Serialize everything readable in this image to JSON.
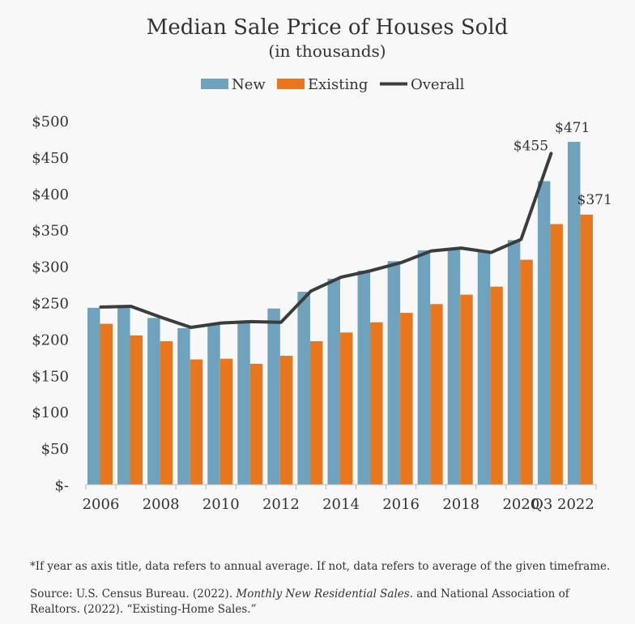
{
  "chart_data": {
    "type": "bar",
    "title": "Median Sale Price of Houses Sold",
    "subtitle": "(in thousands)",
    "categories": [
      "2006",
      "2007",
      "2008",
      "2009",
      "2010",
      "2011",
      "2012",
      "2013",
      "2014",
      "2015",
      "2016",
      "2017",
      "2018",
      "2019",
      "2020",
      "2021",
      "Q3 2022"
    ],
    "x_tick_labels": [
      "2006",
      "2008",
      "2010",
      "2012",
      "2014",
      "2016",
      "2018",
      "2020",
      "Q3 2022"
    ],
    "series": [
      {
        "name": "New",
        "type": "bar",
        "color": "#6fa3bd",
        "values": [
          243,
          245,
          229,
          215,
          220,
          224,
          242,
          265,
          283,
          294,
          307,
          322,
          325,
          321,
          336,
          417,
          471
        ]
      },
      {
        "name": "Existing",
        "type": "bar",
        "color": "#e8761c",
        "values": [
          221,
          205,
          197,
          172,
          173,
          166,
          177,
          197,
          209,
          223,
          236,
          248,
          261,
          272,
          309,
          358,
          371
        ]
      },
      {
        "name": "Overall",
        "type": "line",
        "color": "#3a3d3e",
        "values": [
          244,
          245,
          230,
          216,
          222,
          224,
          223,
          266,
          285,
          294,
          305,
          321,
          325,
          319,
          337,
          455,
          null
        ]
      }
    ],
    "data_labels": [
      {
        "text": "$471",
        "category": "Q3 2022",
        "series": "New"
      },
      {
        "text": "$455",
        "category": "2021",
        "series": "Overall"
      },
      {
        "text": "$371",
        "category": "Q3 2022",
        "series": "Existing"
      }
    ],
    "ylim": [
      0,
      500
    ],
    "y_ticks": [
      0,
      50,
      100,
      150,
      200,
      250,
      300,
      350,
      400,
      450,
      500
    ],
    "y_tick_labels": [
      "$-",
      "$50",
      "$100",
      "$150",
      "$200",
      "$250",
      "$300",
      "$350",
      "$400",
      "$450",
      "$500"
    ],
    "xlabel": "",
    "ylabel": "",
    "grid": false,
    "legend_position": "top-center"
  },
  "footnote": "*If year as axis title, data refers to annual average. If not, data refers to average of the given timeframe.",
  "source": {
    "prefix": "Source: U.S. Census Bureau. (2022). ",
    "italic": "Monthly New Residential Sales.",
    "suffix": " and National Association of Realtors. (2022). “Existing-Home Sales.”"
  }
}
